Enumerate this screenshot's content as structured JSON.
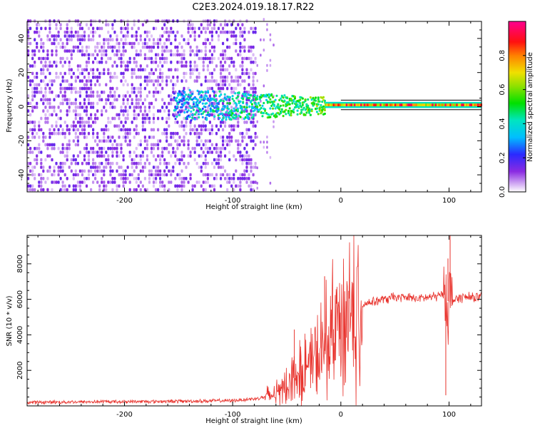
{
  "title": "C2E3.2024.019.18.17.R22",
  "chart_data": [
    {
      "type": "heatmap",
      "xlabel": "Height of straight line (km)",
      "ylabel": "Frequency (Hz)",
      "xlim": [
        -290,
        130
      ],
      "ylim": [
        -50,
        50
      ],
      "xticks": [
        -200,
        -100,
        0,
        100
      ],
      "yticks": [
        -40,
        -20,
        0,
        20,
        40
      ],
      "colorbar": {
        "label": "Normalized spectral amplitude",
        "range": [
          0,
          1
        ],
        "ticks": [
          "0.0",
          "0.2",
          "0.4",
          "0.6",
          "0.8"
        ],
        "colormap": "white-purple-blue-cyan-green-yellow-orange-red-magenta"
      },
      "features": {
        "noise_region_x": [
          -290,
          -78
        ],
        "sparse_noise_x": [
          -78,
          -60
        ],
        "clustered_signal_x": [
          -155,
          -15
        ],
        "steady_line_x": [
          -15,
          130
        ],
        "line_frequency_hz": 1,
        "line_mean_amplitude": 0.85
      }
    },
    {
      "type": "line",
      "xlabel": "Height of straight line (km)",
      "ylabel": "SNR (10 * v/v)",
      "xlim": [
        -290,
        130
      ],
      "ylim": [
        0,
        9600
      ],
      "xticks": [
        -200,
        -100,
        0,
        100
      ],
      "yticks": [
        2000,
        4000,
        6000,
        8000
      ],
      "line_color": "#e8312b",
      "series": [
        {
          "x": [
            -290,
            -250,
            -200,
            -150,
            -120,
            -100,
            -80,
            -70,
            -60,
            -55,
            -50,
            -45,
            -40,
            -35,
            -30,
            -25,
            -20,
            -15,
            -10,
            -5,
            0,
            5,
            10,
            15,
            20,
            25,
            30,
            40,
            50,
            60,
            70,
            80,
            90,
            95,
            98,
            100,
            102,
            105,
            110,
            120,
            130
          ],
          "values": [
            200,
            220,
            240,
            260,
            280,
            300,
            400,
            500,
            700,
            900,
            1200,
            1500,
            1800,
            2000,
            2200,
            2500,
            2700,
            3100,
            3800,
            4300,
            4900,
            5100,
            5300,
            5500,
            5700,
            5800,
            5900,
            6000,
            6100,
            6100,
            6050,
            6100,
            6200,
            6300,
            6000,
            5800,
            5900,
            6000,
            6100,
            6100,
            6100
          ]
        }
      ],
      "spikes": [
        {
          "x": -43,
          "y": 4300
        },
        {
          "x": -15,
          "y": 7300
        },
        {
          "x": 97,
          "y": 600
        },
        {
          "x": 99,
          "y": 8300
        },
        {
          "x": 101,
          "y": 9600
        }
      ]
    }
  ]
}
